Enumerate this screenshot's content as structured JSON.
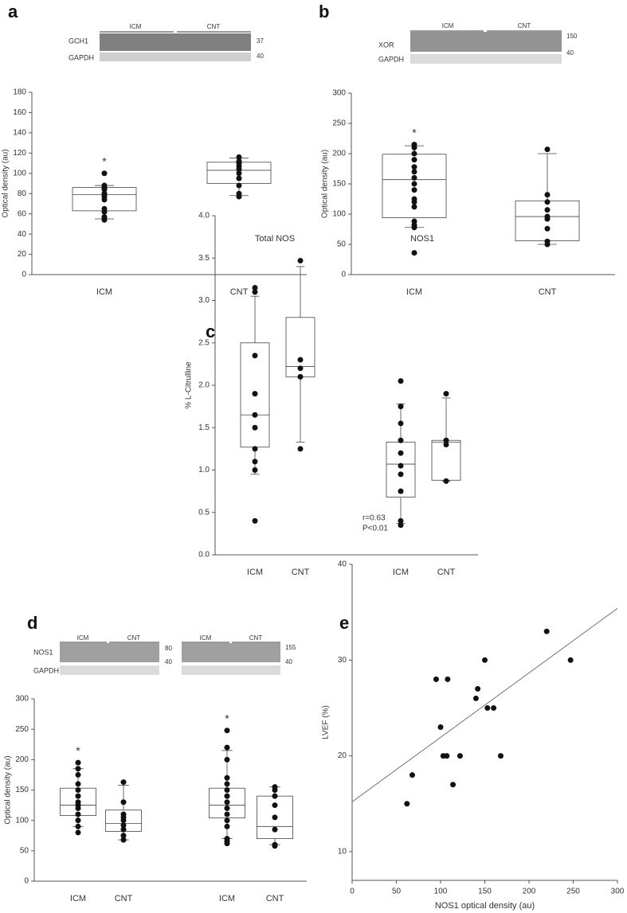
{
  "chart_data": [
    {
      "type": "box",
      "panel": "a",
      "ylabel": "Optical density (au)",
      "categories": [
        "ICM",
        "CNT"
      ],
      "ylim": [
        0,
        180
      ],
      "yticks": [
        0,
        20,
        40,
        60,
        80,
        100,
        120,
        140,
        160,
        180
      ],
      "blot": {
        "labels": [
          "GCH1",
          "GAPDH"
        ],
        "groups": [
          "ICM",
          "CNT"
        ],
        "markers": [
          37,
          40
        ]
      },
      "boxes": [
        {
          "whislo": 55,
          "q1": 63,
          "med": 79,
          "q3": 86,
          "whishi": 88,
          "sig": "*",
          "points": [
            54,
            56,
            57,
            62,
            65,
            74,
            77,
            79,
            80,
            84,
            85,
            86,
            88,
            100
          ]
        },
        {
          "whislo": 78,
          "q1": 90,
          "med": 103,
          "q3": 111,
          "whishi": 115,
          "points": [
            77,
            80,
            88,
            95,
            100,
            104,
            107,
            110,
            112,
            116
          ]
        }
      ]
    },
    {
      "type": "box",
      "panel": "b",
      "ylabel": "Optical density (au)",
      "categories": [
        "ICM",
        "CNT"
      ],
      "ylim": [
        0,
        300
      ],
      "yticks": [
        0,
        50,
        100,
        150,
        200,
        250,
        300
      ],
      "blot": {
        "labels": [
          "XOR",
          "GAPDH"
        ],
        "groups": [
          "ICM",
          "CNT"
        ],
        "markers": [
          150,
          40
        ]
      },
      "boxes": [
        {
          "whislo": 78,
          "q1": 94,
          "med": 157,
          "q3": 199,
          "whishi": 213,
          "sig": "*",
          "points": [
            36,
            78,
            82,
            88,
            112,
            120,
            125,
            140,
            150,
            160,
            170,
            178,
            190,
            200,
            210,
            215
          ]
        },
        {
          "whislo": 50,
          "q1": 56,
          "med": 96,
          "q3": 122,
          "whishi": 200,
          "points": [
            50,
            55,
            76,
            92,
            96,
            107,
            120,
            132,
            207
          ]
        }
      ]
    },
    {
      "type": "box",
      "panel": "c",
      "ylabel": "% L-Citrulline",
      "categories": [
        "ICM",
        "CNT",
        "ICM",
        "CNT"
      ],
      "groups": [
        "Total NOS",
        "NOS1"
      ],
      "ylim": [
        0,
        4
      ],
      "yticks": [
        {
          "value": 0,
          "label": "0.0"
        },
        0.5,
        {
          "value": 1,
          "label": "1.0"
        },
        1.5,
        {
          "value": 2,
          "label": "2.0"
        },
        2.5,
        {
          "value": 3,
          "label": "3.0"
        },
        3.5,
        {
          "value": 4,
          "label": "4.0"
        }
      ],
      "boxes": [
        {
          "whislo": 0.95,
          "q1": 1.27,
          "med": 1.65,
          "q3": 2.5,
          "whishi": 3.05,
          "points": [
            0.4,
            1.0,
            1.1,
            1.25,
            1.5,
            1.65,
            1.9,
            2.35,
            3.1,
            3.15
          ]
        },
        {
          "whislo": 1.33,
          "q1": 2.1,
          "med": 2.22,
          "q3": 2.8,
          "whishi": 3.4,
          "points": [
            1.25,
            2.1,
            2.2,
            2.3,
            3.47
          ]
        },
        {
          "whislo": 0.37,
          "q1": 0.68,
          "med": 1.07,
          "q3": 1.33,
          "whishi": 1.78,
          "points": [
            0.35,
            0.4,
            0.75,
            0.95,
            1.05,
            1.2,
            1.35,
            1.55,
            1.75,
            2.05
          ]
        },
        {
          "whislo": 0.87,
          "q1": 0.88,
          "med": 1.33,
          "q3": 1.35,
          "whishi": 1.85,
          "points": [
            0.87,
            1.3,
            1.35,
            1.9
          ]
        }
      ]
    },
    {
      "type": "box",
      "panel": "d",
      "ylabel": "Optical density (au)",
      "categories": [
        "ICM",
        "CNT",
        "ICM",
        "CNT"
      ],
      "ylim": [
        0,
        300
      ],
      "yticks": [
        0,
        50,
        100,
        150,
        200,
        250,
        300
      ],
      "blot": {
        "labels": [
          "NOS1",
          "GAPDH"
        ],
        "groups": [
          "ICM",
          "CNT",
          "ICM",
          "CNT"
        ],
        "markers": [
          80,
          40,
          155,
          40
        ]
      },
      "boxes": [
        {
          "whislo": 90,
          "q1": 108,
          "med": 125,
          "q3": 153,
          "whishi": 185,
          "sig": "*",
          "points": [
            80,
            90,
            100,
            110,
            120,
            125,
            130,
            140,
            150,
            160,
            175,
            185,
            195
          ]
        },
        {
          "whislo": 68,
          "q1": 82,
          "med": 95,
          "q3": 117,
          "whishi": 158,
          "points": [
            68,
            75,
            85,
            92,
            100,
            105,
            110,
            130,
            163
          ]
        },
        {
          "whislo": 70,
          "q1": 104,
          "med": 125,
          "q3": 153,
          "whishi": 215,
          "sig": "*",
          "points": [
            62,
            66,
            70,
            90,
            100,
            110,
            120,
            130,
            140,
            150,
            160,
            170,
            200,
            220,
            248
          ]
        },
        {
          "whislo": 60,
          "q1": 70,
          "med": 90,
          "q3": 140,
          "whishi": 155,
          "points": [
            58,
            60,
            85,
            105,
            125,
            140,
            150,
            155
          ]
        }
      ]
    },
    {
      "type": "scatter",
      "panel": "e",
      "xlabel": "NOS1 optical density (au)",
      "ylabel": "LVEF (%)",
      "annotations": [
        "r=0.63",
        "P<0.01"
      ],
      "xlim": [
        0,
        300
      ],
      "xticks": [
        0,
        50,
        100,
        150,
        200,
        250,
        300
      ],
      "ylim": [
        7,
        40
      ],
      "yticks": [
        10,
        20,
        30,
        40
      ],
      "x": [
        62,
        68,
        95,
        100,
        103,
        108,
        107,
        114,
        122,
        140,
        142,
        150,
        153,
        160,
        168,
        220,
        247
      ],
      "y": [
        15,
        18,
        28,
        23,
        20,
        28,
        20,
        17,
        20,
        26,
        27,
        30,
        25,
        25,
        20,
        33,
        30
      ],
      "trendline": {
        "x": [
          0,
          300
        ],
        "y": [
          15.2,
          35.4
        ]
      }
    }
  ]
}
